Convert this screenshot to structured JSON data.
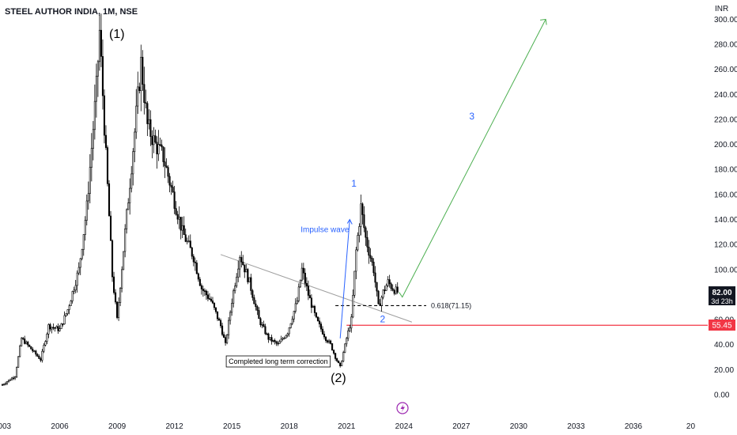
{
  "header": {
    "symbol_title": "STEEL AUTHOR INDIA, 1M, NSE"
  },
  "price_axis": {
    "currency": "INR",
    "tick_labels": [
      "300.00",
      "280.00",
      "260.00",
      "240.00",
      "220.00",
      "200.00",
      "180.00",
      "160.00",
      "140.00",
      "120.00",
      "100.00",
      "80.00",
      "60.00",
      "40.00",
      "20.00",
      "0.00"
    ]
  },
  "time_axis": {
    "tick_labels": [
      "2003",
      "2006",
      "2009",
      "2012",
      "2015",
      "2018",
      "2021",
      "2024",
      "2027",
      "2030",
      "2033",
      "2036",
      "20"
    ]
  },
  "price_badges": {
    "last_price": "82.00",
    "countdown": "3d 23h",
    "support_level": "55.45"
  },
  "annotations": {
    "wave_1_major": "(1)",
    "wave_2_major": "(2)",
    "wave_1_minor": "1",
    "wave_2_minor": "2",
    "wave_3_minor": "3",
    "impulse_label": "Impulse wave",
    "correction_note": "Completed long term correction",
    "fib_label": "0.618(71.15)"
  },
  "colors": {
    "candles": "#000000",
    "support_line": "#f23645",
    "projection_line": "#4caf50",
    "impulse_arrow": "#2962ff",
    "trendline": "#9e9e9e",
    "wave_minor_labels": "#2962ff",
    "badge_dark": "#131722",
    "badge_red": "#f23645"
  },
  "icons": {
    "event_marker": "lightning-icon"
  },
  "chart_data": {
    "type": "candlestick",
    "interval": "1M",
    "exchange": "NSE",
    "currency": "INR",
    "ylim": [
      0,
      300
    ],
    "xlim": [
      "2003",
      "2039"
    ],
    "grid": false,
    "series": [
      {
        "type": "line",
        "points": [
          [
            "2003-01",
            8
          ],
          [
            "2003-09",
            15
          ],
          [
            "2004-01",
            45
          ],
          [
            "2004-06",
            38
          ],
          [
            "2005-01",
            28
          ],
          [
            "2005-06",
            55
          ],
          [
            "2006-01",
            52
          ],
          [
            "2006-06",
            68
          ],
          [
            "2007-01",
            100
          ],
          [
            "2007-06",
            150
          ],
          [
            "2007-12",
            245
          ],
          [
            "2008-02",
            290
          ],
          [
            "2008-06",
            190
          ],
          [
            "2008-10",
            95
          ],
          [
            "2009-01",
            60
          ],
          [
            "2009-06",
            130
          ],
          [
            "2009-12",
            210
          ],
          [
            "2010-04",
            265
          ],
          [
            "2010-08",
            215
          ],
          [
            "2011-01",
            200
          ],
          [
            "2011-06",
            190
          ],
          [
            "2011-12",
            160
          ],
          [
            "2012-06",
            130
          ],
          [
            "2013-01",
            110
          ],
          [
            "2013-06",
            85
          ],
          [
            "2013-12",
            75
          ],
          [
            "2014-06",
            55
          ],
          [
            "2014-09",
            40
          ],
          [
            "2015-01",
            75
          ],
          [
            "2015-06",
            112
          ],
          [
            "2015-12",
            90
          ],
          [
            "2016-06",
            60
          ],
          [
            "2016-12",
            45
          ],
          [
            "2017-06",
            40
          ],
          [
            "2017-12",
            50
          ],
          [
            "2018-06",
            75
          ],
          [
            "2018-09",
            100
          ],
          [
            "2019-01",
            80
          ],
          [
            "2019-06",
            60
          ],
          [
            "2019-12",
            45
          ],
          [
            "2020-03",
            40
          ],
          [
            "2020-06",
            30
          ],
          [
            "2020-09",
            22
          ],
          [
            "2021-01",
            45
          ],
          [
            "2021-04",
            60
          ],
          [
            "2021-07",
            115
          ],
          [
            "2021-10",
            150
          ],
          [
            "2022-01",
            125
          ],
          [
            "2022-06",
            100
          ],
          [
            "2022-09",
            70
          ],
          [
            "2022-12",
            82
          ],
          [
            "2023-03",
            90
          ],
          [
            "2023-06",
            85
          ],
          [
            "2023-09",
            82
          ]
        ]
      }
    ],
    "horizontal_levels": [
      {
        "value": 55.45,
        "label": "55.45"
      },
      {
        "value": 71.15,
        "label": "0.618(71.15)"
      }
    ],
    "trendlines": [
      {
        "from": [
          "2014-06",
          112
        ],
        "to": [
          "2024-06",
          58
        ]
      }
    ],
    "projection": {
      "from": [
        "2023-12",
        78
      ],
      "to": [
        "2031-06",
        300
      ],
      "label": "3"
    },
    "impulse_arrow": {
      "from": [
        "2020-09",
        45
      ],
      "to": [
        "2021-03",
        140
      ],
      "label": "Impulse wave"
    },
    "wave_labels": [
      {
        "label": "(1)",
        "at": [
          "2008-08",
          290
        ]
      },
      {
        "label": "(2)",
        "at": [
          "2020-08",
          10
        ]
      },
      {
        "label": "1",
        "at": [
          "2021-05",
          160
        ]
      },
      {
        "label": "2",
        "at": [
          "2022-09",
          63
        ]
      },
      {
        "label": "3",
        "at": [
          "2027-06",
          220
        ]
      }
    ],
    "last_price": 82.0,
    "countdown": "3d 23h"
  }
}
